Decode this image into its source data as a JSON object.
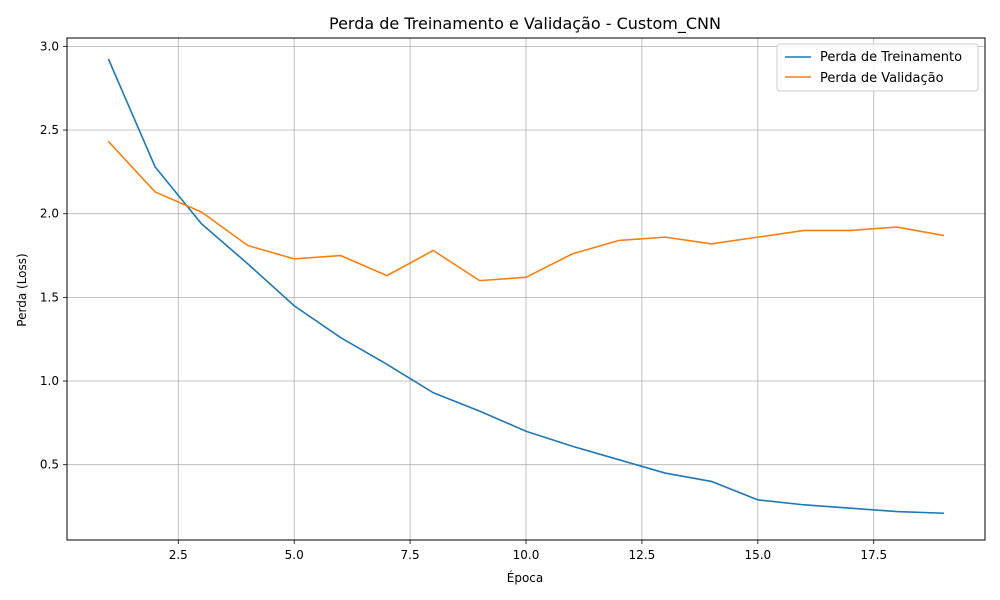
{
  "chart_data": {
    "type": "line",
    "title": "Perda de Treinamento e Validação - Custom_CNN",
    "xlabel": "Época",
    "ylabel": "Perda (Loss)",
    "xlim": [
      0.1,
      19.9
    ],
    "ylim": [
      0.05,
      3.05
    ],
    "xticks": [
      2.5,
      5.0,
      7.5,
      10.0,
      12.5,
      15.0,
      17.5
    ],
    "xtick_labels": [
      "2.5",
      "5.0",
      "7.5",
      "10.0",
      "12.5",
      "15.0",
      "17.5"
    ],
    "yticks": [
      0.5,
      1.0,
      1.5,
      2.0,
      2.5,
      3.0
    ],
    "ytick_labels": [
      "0.5",
      "1.0",
      "1.5",
      "2.0",
      "2.5",
      "3.0"
    ],
    "grid": true,
    "legend_position": "top-right",
    "x": [
      1,
      2,
      3,
      4,
      5,
      6,
      7,
      8,
      9,
      10,
      11,
      12,
      13,
      14,
      15,
      16,
      17,
      18,
      19
    ],
    "series": [
      {
        "name": "Perda de Treinamento",
        "color": "#1f77b4",
        "values": [
          2.92,
          2.28,
          1.94,
          1.7,
          1.45,
          1.26,
          1.1,
          0.93,
          0.82,
          0.7,
          0.61,
          0.53,
          0.45,
          0.4,
          0.29,
          0.26,
          0.24,
          0.22,
          0.21
        ]
      },
      {
        "name": "Perda de Validação",
        "color": "#ff7f0e",
        "values": [
          2.43,
          2.13,
          2.01,
          1.81,
          1.73,
          1.75,
          1.63,
          1.78,
          1.6,
          1.62,
          1.76,
          1.84,
          1.86,
          1.82,
          1.86,
          1.9,
          1.9,
          1.92,
          1.87
        ]
      }
    ]
  }
}
